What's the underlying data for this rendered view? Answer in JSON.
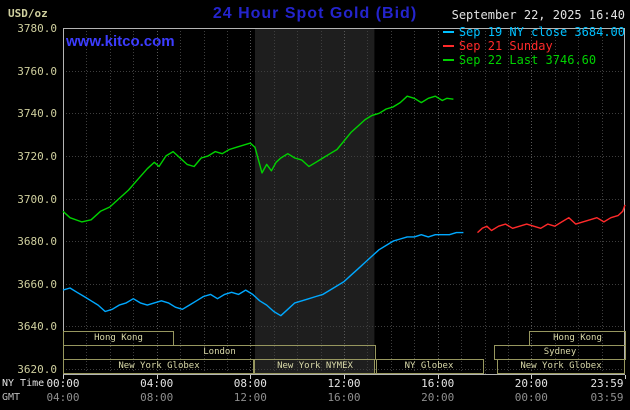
{
  "header": {
    "unit_label": "USD/oz",
    "title": "24 Hour Spot Gold (Bid)",
    "datetime": "September 22, 2025 16:40",
    "watermark": "www.kitco.com",
    "legend": [
      {
        "label": "Sep 19 NY close 3684.00",
        "color": "#00c0ff"
      },
      {
        "label": "Sep 21 Sunday",
        "color": "#ff2a2a"
      },
      {
        "label": "Sep 22 Last 3746.60",
        "color": "#00d200"
      }
    ]
  },
  "axes": {
    "y_ticks": [
      "3780.0",
      "3760.0",
      "3740.0",
      "3720.0",
      "3700.0",
      "3680.0",
      "3660.0",
      "3640.0",
      "3620.0"
    ],
    "x_tick_hours": [
      0,
      4,
      8,
      12,
      16,
      20,
      23.983
    ],
    "x_ticks_ny": [
      "00:00",
      "04:00",
      "08:00",
      "12:00",
      "16:00",
      "20:00",
      "23:59"
    ],
    "x_ticks_gmt": [
      "04:00",
      "08:00",
      "12:00",
      "16:00",
      "20:00",
      "00:00",
      "03:59"
    ],
    "ny_time_label": "NY Time",
    "gmt_label": "GMT"
  },
  "sessions": {
    "rows": [
      [
        {
          "label": "Hong Kong",
          "start": 0,
          "end": 4.65
        },
        {
          "label": "Hong Kong",
          "start": 19.9,
          "end": 23.95
        }
      ],
      [
        {
          "label": "London",
          "start": 0,
          "end": 13.3
        },
        {
          "label": "Sydney",
          "start": 18.4,
          "end": 23.95
        }
      ],
      [
        {
          "label": "New York Globex",
          "start": 0,
          "end": 8.1
        },
        {
          "label": "New York NYMEX",
          "start": 8.1,
          "end": 13.3
        },
        {
          "label": "NY Globex",
          "start": 13.3,
          "end": 17.9
        },
        {
          "label": "New York Globex",
          "start": 18.55,
          "end": 23.95
        }
      ]
    ]
  },
  "colors": {
    "background": "#000000",
    "title": "#2424cd",
    "watermark": "#3c3cff",
    "band": "#1e1e1e",
    "grid": "#3e3e3e",
    "grid_major": "#585858",
    "plot_border": "#b4b4b4",
    "tick": "#cfcfcf",
    "axis_text_tan": "#cfcf9e",
    "x_label_ny": "#e4e4e4",
    "x_label_gmt": "#8f8f8f",
    "session_border": "#97975f",
    "session_text": "#d8d8a8"
  },
  "chart_data": {
    "type": "line",
    "title": "24 Hour Spot Gold (Bid)",
    "ylabel": "USD/oz",
    "xlabel": "NY Time (hours)",
    "xlim": [
      0,
      24
    ],
    "ylim": [
      3620,
      3780
    ],
    "y_tick_step": 20,
    "grid": true,
    "legend_position": "top-right",
    "shaded_band_hours": [
      8.2,
      13.3
    ],
    "series": [
      {
        "name": "Sep 19 NY close",
        "color": "#00a8ff",
        "close_value": 3684.0,
        "points": [
          [
            0,
            3657
          ],
          [
            0.3,
            3658
          ],
          [
            0.6,
            3656
          ],
          [
            0.9,
            3654
          ],
          [
            1.2,
            3652
          ],
          [
            1.5,
            3650
          ],
          [
            1.8,
            3647
          ],
          [
            2.1,
            3648
          ],
          [
            2.4,
            3650
          ],
          [
            2.7,
            3651
          ],
          [
            3.0,
            3653
          ],
          [
            3.3,
            3651
          ],
          [
            3.6,
            3650
          ],
          [
            3.9,
            3651
          ],
          [
            4.2,
            3652
          ],
          [
            4.5,
            3651
          ],
          [
            4.8,
            3649
          ],
          [
            5.1,
            3648
          ],
          [
            5.4,
            3650
          ],
          [
            5.7,
            3652
          ],
          [
            6.0,
            3654
          ],
          [
            6.3,
            3655
          ],
          [
            6.6,
            3653
          ],
          [
            6.9,
            3655
          ],
          [
            7.2,
            3656
          ],
          [
            7.5,
            3655
          ],
          [
            7.8,
            3657
          ],
          [
            8.1,
            3655
          ],
          [
            8.4,
            3652
          ],
          [
            8.7,
            3650
          ],
          [
            9.0,
            3647
          ],
          [
            9.3,
            3645
          ],
          [
            9.6,
            3648
          ],
          [
            9.9,
            3651
          ],
          [
            10.2,
            3652
          ],
          [
            10.5,
            3653
          ],
          [
            10.8,
            3654
          ],
          [
            11.1,
            3655
          ],
          [
            11.4,
            3657
          ],
          [
            11.7,
            3659
          ],
          [
            12.0,
            3661
          ],
          [
            12.3,
            3664
          ],
          [
            12.6,
            3667
          ],
          [
            12.9,
            3670
          ],
          [
            13.2,
            3673
          ],
          [
            13.5,
            3676
          ],
          [
            13.8,
            3678
          ],
          [
            14.1,
            3680
          ],
          [
            14.4,
            3681
          ],
          [
            14.7,
            3682
          ],
          [
            15.0,
            3682
          ],
          [
            15.3,
            3683
          ],
          [
            15.6,
            3682
          ],
          [
            15.9,
            3683
          ],
          [
            16.2,
            3683
          ],
          [
            16.5,
            3683
          ],
          [
            16.8,
            3684
          ],
          [
            17.1,
            3684
          ]
        ]
      },
      {
        "name": "Sep 21 Sunday",
        "color": "#ff2a2a",
        "points": [
          [
            17.7,
            3684
          ],
          [
            17.9,
            3686
          ],
          [
            18.1,
            3687
          ],
          [
            18.3,
            3685
          ],
          [
            18.6,
            3687
          ],
          [
            18.9,
            3688
          ],
          [
            19.2,
            3686
          ],
          [
            19.5,
            3687
          ],
          [
            19.8,
            3688
          ],
          [
            20.1,
            3687
          ],
          [
            20.4,
            3686
          ],
          [
            20.7,
            3688
          ],
          [
            21.0,
            3687
          ],
          [
            21.3,
            3689
          ],
          [
            21.6,
            3691
          ],
          [
            21.9,
            3688
          ],
          [
            22.2,
            3689
          ],
          [
            22.5,
            3690
          ],
          [
            22.8,
            3691
          ],
          [
            23.1,
            3689
          ],
          [
            23.4,
            3691
          ],
          [
            23.7,
            3692
          ],
          [
            23.9,
            3694
          ],
          [
            24.0,
            3697
          ]
        ]
      },
      {
        "name": "Sep 22",
        "color": "#00d200",
        "last_value": 3746.6,
        "points": [
          [
            0,
            3694
          ],
          [
            0.3,
            3691
          ],
          [
            0.8,
            3689
          ],
          [
            1.2,
            3690
          ],
          [
            1.6,
            3694
          ],
          [
            2.0,
            3696
          ],
          [
            2.4,
            3700
          ],
          [
            2.8,
            3704
          ],
          [
            3.2,
            3709
          ],
          [
            3.6,
            3714
          ],
          [
            3.9,
            3717
          ],
          [
            4.1,
            3715
          ],
          [
            4.4,
            3720
          ],
          [
            4.7,
            3722
          ],
          [
            5.0,
            3719
          ],
          [
            5.3,
            3716
          ],
          [
            5.6,
            3715
          ],
          [
            5.9,
            3719
          ],
          [
            6.2,
            3720
          ],
          [
            6.5,
            3722
          ],
          [
            6.8,
            3721
          ],
          [
            7.1,
            3723
          ],
          [
            7.4,
            3724
          ],
          [
            7.7,
            3725
          ],
          [
            8.0,
            3726
          ],
          [
            8.2,
            3724
          ],
          [
            8.4,
            3716
          ],
          [
            8.5,
            3712
          ],
          [
            8.7,
            3716
          ],
          [
            8.9,
            3713
          ],
          [
            9.1,
            3717
          ],
          [
            9.3,
            3719
          ],
          [
            9.6,
            3721
          ],
          [
            9.9,
            3719
          ],
          [
            10.2,
            3718
          ],
          [
            10.5,
            3715
          ],
          [
            10.8,
            3717
          ],
          [
            11.1,
            3719
          ],
          [
            11.4,
            3721
          ],
          [
            11.7,
            3723
          ],
          [
            12.0,
            3727
          ],
          [
            12.3,
            3731
          ],
          [
            12.6,
            3734
          ],
          [
            12.9,
            3737
          ],
          [
            13.2,
            3739
          ],
          [
            13.5,
            3740
          ],
          [
            13.8,
            3742
          ],
          [
            14.1,
            3743
          ],
          [
            14.4,
            3745
          ],
          [
            14.7,
            3748
          ],
          [
            15.0,
            3747
          ],
          [
            15.3,
            3745
          ],
          [
            15.6,
            3747
          ],
          [
            15.9,
            3748
          ],
          [
            16.2,
            3746
          ],
          [
            16.4,
            3747
          ],
          [
            16.67,
            3746.6
          ]
        ]
      }
    ]
  }
}
